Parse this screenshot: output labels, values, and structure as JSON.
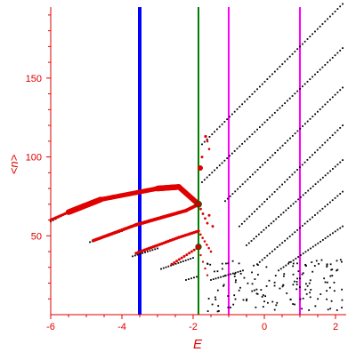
{
  "chart_data": {
    "type": "scatter",
    "title": "",
    "xlabel": "E",
    "ylabel": "<n>",
    "xlim": [
      -6,
      2.3
    ],
    "ylim": [
      0,
      195
    ],
    "grid": false,
    "x_ticks": [
      {
        "value": -6,
        "label": "-6"
      },
      {
        "value": -4,
        "label": "-4"
      },
      {
        "value": -2,
        "label": "-2"
      },
      {
        "value": 0,
        "label": "0"
      },
      {
        "value": 2,
        "label": "2"
      }
    ],
    "y_ticks": [
      {
        "value": 50,
        "label": "50"
      },
      {
        "value": 100,
        "label": "100"
      },
      {
        "value": 150,
        "label": "150"
      }
    ],
    "colors": {
      "axis": "#e00000",
      "black_points": "#000000",
      "red_points": "#e00000",
      "line_blue": "#0000ff",
      "line_green": "#008000",
      "line_magenta": "#ff00ff",
      "marker": "#cc0000"
    },
    "vertical_lines": [
      {
        "x": -3.5,
        "color": "#0000ff",
        "width": 4
      },
      {
        "x": -1.85,
        "color": "#008000",
        "width": 2
      },
      {
        "x": -1.0,
        "color": "#ff00ff",
        "width": 2
      },
      {
        "x": 1.0,
        "color": "#ff00ff",
        "width": 2
      }
    ],
    "series": [
      {
        "color": "#000000",
        "style": "dots",
        "segments": [
          {
            "x0": -6.0,
            "y0": 59,
            "x1": -5.1,
            "y1": 70,
            "step": 0.07
          },
          {
            "x0": -4.9,
            "y0": 46,
            "x1": -4.0,
            "y1": 53,
            "step": 0.07
          },
          {
            "x0": -3.7,
            "y0": 37,
            "x1": -3.0,
            "y1": 42,
            "step": 0.07
          },
          {
            "x0": -2.9,
            "y0": 29,
            "x1": -2.0,
            "y1": 36,
            "step": 0.07
          },
          {
            "x0": -2.2,
            "y0": 22,
            "x1": -1.9,
            "y1": 24,
            "step": 0.07
          },
          {
            "x0": -1.75,
            "y0": 108,
            "x1": 2.2,
            "y1": 197,
            "step": 0.07
          },
          {
            "x0": -1.75,
            "y0": 84,
            "x1": 2.2,
            "y1": 169,
            "step": 0.07
          },
          {
            "x0": -1.1,
            "y0": 72,
            "x1": 2.2,
            "y1": 144,
            "step": 0.07
          },
          {
            "x0": -0.7,
            "y0": 56,
            "x1": 2.2,
            "y1": 120,
            "step": 0.07
          },
          {
            "x0": -0.5,
            "y0": 44,
            "x1": 2.2,
            "y1": 98,
            "step": 0.07
          },
          {
            "x0": -0.2,
            "y0": 32,
            "x1": 2.2,
            "y1": 78,
            "step": 0.07
          },
          {
            "x0": 0.4,
            "y0": 28,
            "x1": 2.2,
            "y1": 56,
            "step": 0.07
          },
          {
            "x0": -1.5,
            "y0": 22,
            "x1": -0.6,
            "y1": 28,
            "step": 0.07
          }
        ],
        "scatter_seed": 7,
        "scatter_region": {
          "xmin": -1.6,
          "xmax": 2.2,
          "ymin": 2,
          "ymax": 35,
          "count": 150
        }
      },
      {
        "color": "#e00000",
        "style": "dense",
        "segments": [
          {
            "x0": -6.0,
            "y0": 60,
            "x1": -5.5,
            "y1": 65,
            "step": 0.05,
            "r": 1.6
          },
          {
            "x0": -5.5,
            "y0": 65,
            "x1": -4.6,
            "y1": 73,
            "step": 0.02,
            "r": 3.2
          },
          {
            "x0": -4.6,
            "y0": 73,
            "x1": -3.0,
            "y1": 80,
            "step": 0.03,
            "r": 2.6
          },
          {
            "x0": -3.0,
            "y0": 80,
            "x1": -2.4,
            "y1": 81,
            "step": 0.02,
            "r": 3.2
          },
          {
            "x0": -2.4,
            "y0": 81,
            "x1": -1.85,
            "y1": 70,
            "step": 0.02,
            "r": 3.0
          },
          {
            "x0": -4.8,
            "y0": 47,
            "x1": -3.6,
            "y1": 57,
            "step": 0.04,
            "r": 1.8
          },
          {
            "x0": -3.6,
            "y0": 57,
            "x1": -2.2,
            "y1": 66,
            "step": 0.05,
            "r": 2.0
          },
          {
            "x0": -2.2,
            "y0": 66,
            "x1": -1.85,
            "y1": 70,
            "step": 0.05,
            "r": 2.0
          },
          {
            "x0": -3.6,
            "y0": 39,
            "x1": -2.4,
            "y1": 49,
            "step": 0.06,
            "r": 1.7
          },
          {
            "x0": -2.4,
            "y0": 49,
            "x1": -1.85,
            "y1": 53,
            "step": 0.06,
            "r": 1.7
          },
          {
            "x0": -2.6,
            "y0": 32,
            "x1": -1.9,
            "y1": 42,
            "step": 0.07,
            "r": 1.5
          },
          {
            "x0": -1.85,
            "y0": 70,
            "x1": -1.6,
            "y1": 58,
            "step": 0.06,
            "r": 1.4
          },
          {
            "x0": -1.85,
            "y0": 53,
            "x1": -1.5,
            "y1": 40,
            "step": 0.06,
            "r": 1.3
          },
          {
            "x0": -1.85,
            "y0": 42,
            "x1": -1.6,
            "y1": 25,
            "step": 0.06,
            "r": 1.2
          }
        ],
        "isolated": [
          {
            "x": -1.65,
            "y": 113,
            "r": 1.6
          },
          {
            "x": -1.6,
            "y": 110,
            "r": 1.3
          },
          {
            "x": -1.55,
            "y": 105,
            "r": 1.3
          },
          {
            "x": -1.75,
            "y": 100,
            "r": 1.5
          },
          {
            "x": -1.8,
            "y": 93,
            "r": 3.0
          },
          {
            "x": -1.55,
            "y": 63,
            "r": 1.5
          },
          {
            "x": -1.45,
            "y": 56,
            "r": 1.5
          }
        ]
      }
    ],
    "markers": [
      {
        "x": -1.85,
        "y": 70,
        "r": 3.5
      },
      {
        "x": -1.85,
        "y": 43,
        "r": 3.2
      }
    ]
  }
}
